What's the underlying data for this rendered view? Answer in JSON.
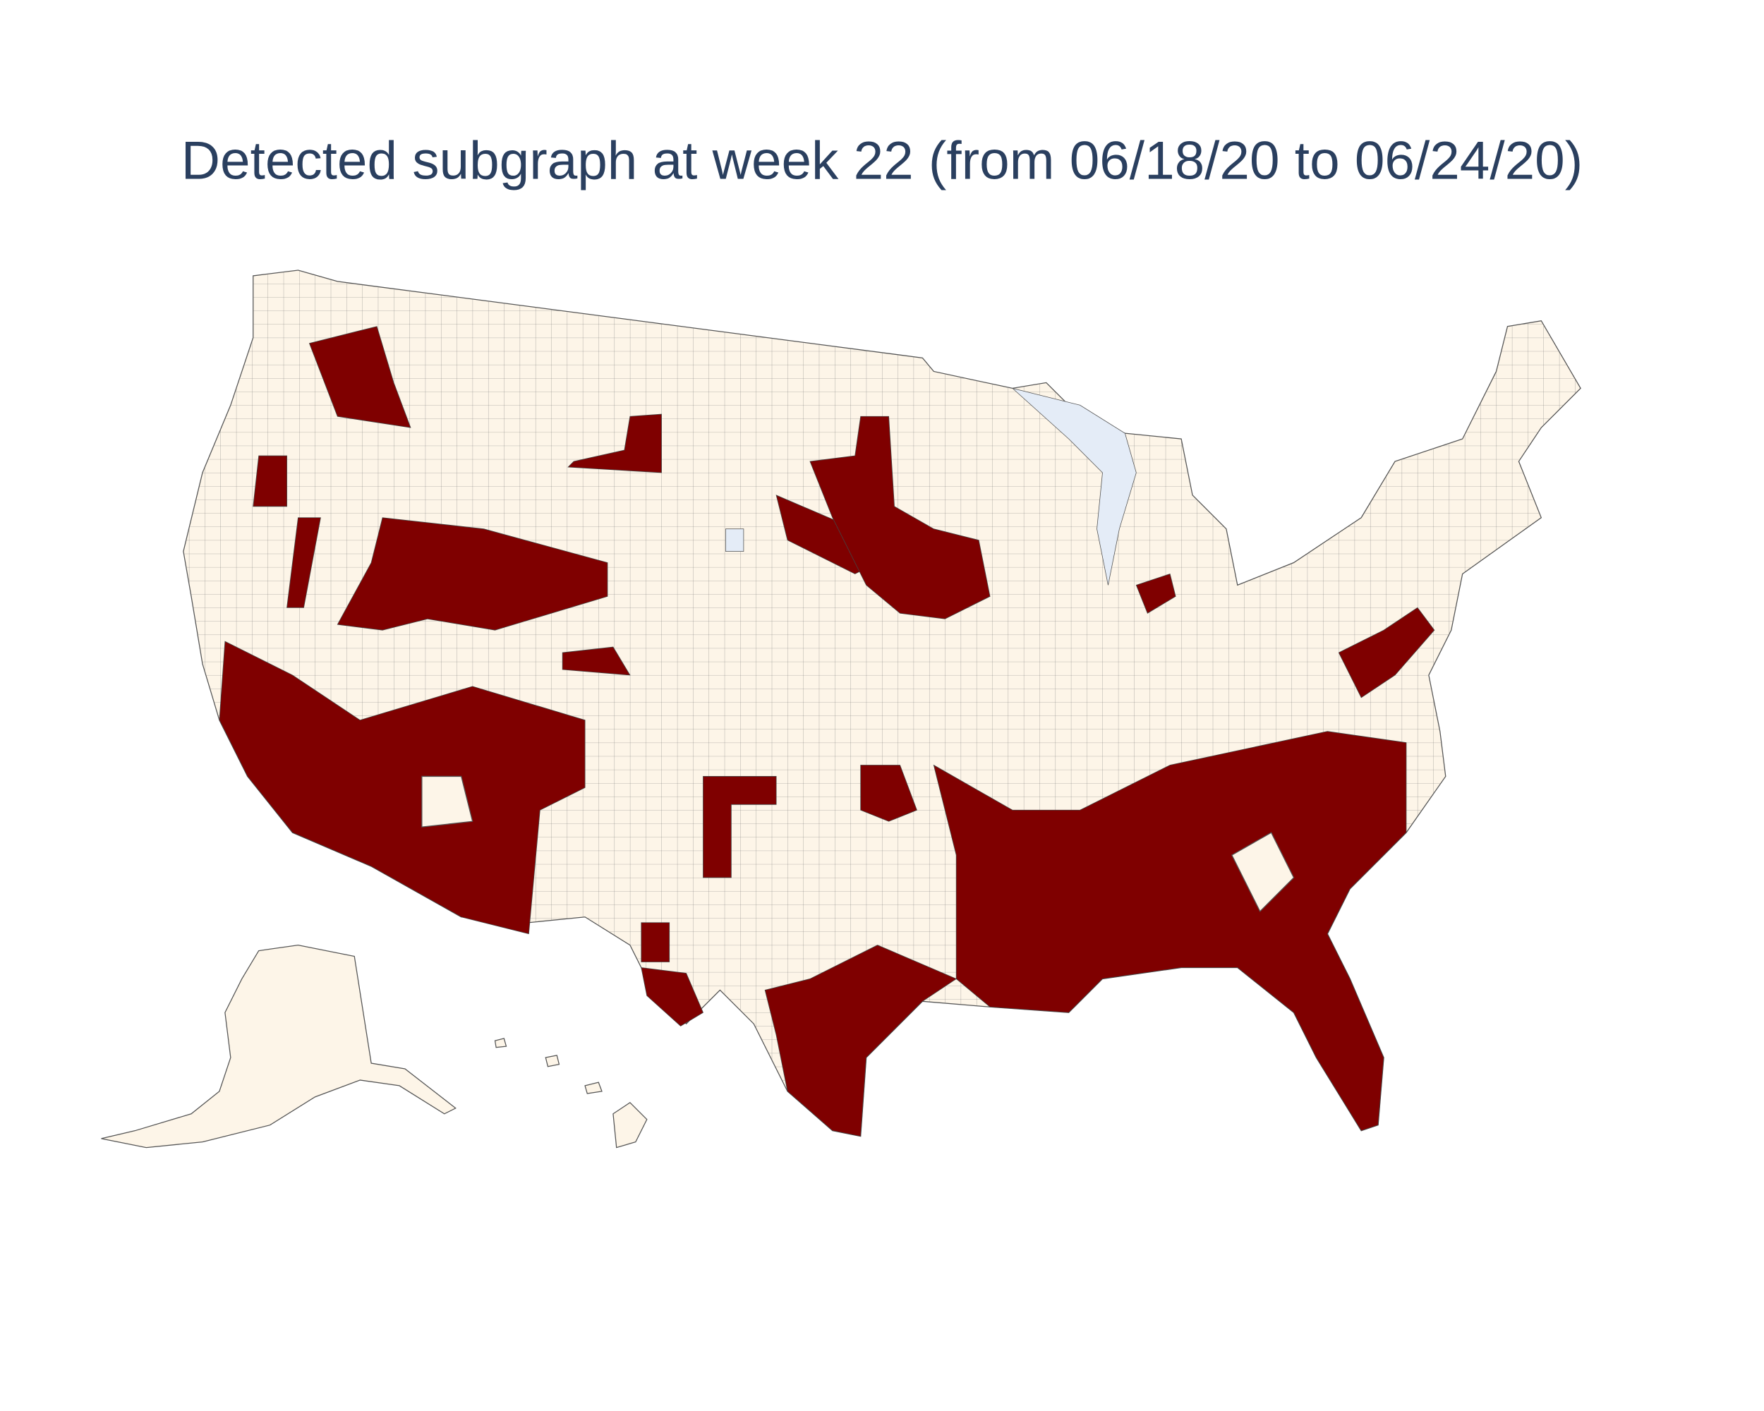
{
  "title": "Detected subgraph at week 22 (from 06/18/20 to 06/24/20)"
}
